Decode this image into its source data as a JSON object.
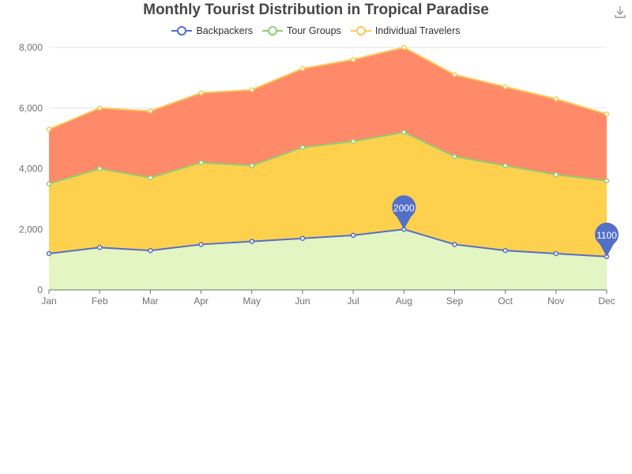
{
  "chart_data": {
    "type": "area",
    "stacked": true,
    "title": "Monthly Tourist Distribution in Tropical Paradise",
    "categories": [
      "Jan",
      "Feb",
      "Mar",
      "Apr",
      "May",
      "Jun",
      "Jul",
      "Aug",
      "Sep",
      "Oct",
      "Nov",
      "Dec"
    ],
    "series": [
      {
        "name": "Backpackers",
        "values": [
          1200,
          1400,
          1300,
          1500,
          1600,
          1700,
          1800,
          2000,
          1500,
          1300,
          1200,
          1100
        ],
        "line_color": "#5470c6",
        "fill_color": "#e3f5c2"
      },
      {
        "name": "Tour Groups",
        "values": [
          2300,
          2600,
          2400,
          2700,
          2500,
          3000,
          3100,
          3200,
          2900,
          2800,
          2600,
          2500
        ],
        "line_color": "#91cc75",
        "fill_color": "#fdd14d"
      },
      {
        "name": "Individual Travelers",
        "values": [
          1800,
          2000,
          2200,
          2300,
          2500,
          2600,
          2700,
          2800,
          2700,
          2600,
          2500,
          2200
        ],
        "line_color": "#fac858",
        "fill_color": "#ff8a6a"
      }
    ],
    "ylim": [
      0,
      8000
    ],
    "yticks": [
      0,
      2000,
      4000,
      6000,
      8000
    ],
    "ytick_labels": [
      "0",
      "2,000",
      "4,000",
      "6,000",
      "8,000"
    ],
    "grid": true,
    "legend_position": "top-center",
    "markers": [
      {
        "series": "Backpackers",
        "category": "Aug",
        "label": "2000"
      },
      {
        "series": "Backpackers",
        "category": "Dec",
        "label": "1100"
      }
    ],
    "marker_color": "#5470c6"
  },
  "toolbar": {
    "download_icon": "download-icon"
  }
}
